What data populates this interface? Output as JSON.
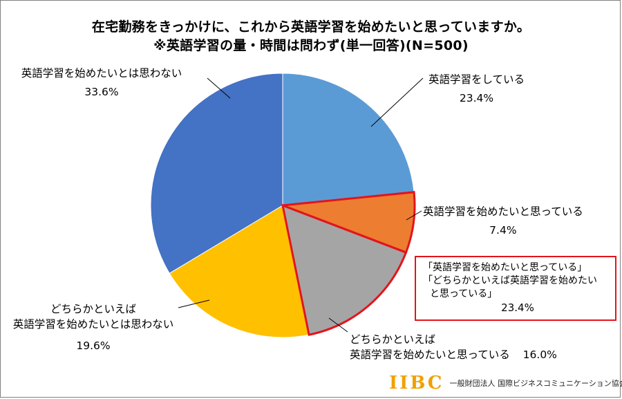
{
  "title": {
    "line1": "在宅勤務をきっかけに、これから英語学習を始めたいと思っていますか。",
    "line2": "※英語学習の量・時間は問わず(単一回答)(N=500)"
  },
  "chart_data": {
    "type": "pie",
    "n": 500,
    "slices": [
      {
        "label": "英語学習をしている",
        "value": 23.4,
        "value_label": "23.4%",
        "color": "#5b9bd5"
      },
      {
        "label": "英語学習を始めたいと思っている",
        "value": 7.4,
        "value_label": "7.4%",
        "color": "#ed7d31",
        "highlight": true
      },
      {
        "label": "どちらかといえば英語学習を始めたいと思っている",
        "value": 16.0,
        "value_label": "16.0%",
        "color": "#a5a5a5",
        "highlight": true
      },
      {
        "label": "どちらかといえば英語学習を始めたいとは思わない",
        "value": 19.6,
        "value_label": "19.6%",
        "color": "#ffc000"
      },
      {
        "label": "英語学習を始めたいとは思わない",
        "value": 33.6,
        "value_label": "33.6%",
        "color": "#4472c4"
      }
    ],
    "highlight_color": "#e3141b"
  },
  "labels": {
    "s0": {
      "name": "英語学習をしている",
      "pct": "23.4%"
    },
    "s1": {
      "name": "英語学習を始めたいと思っている",
      "pct": "7.4%"
    },
    "s2": {
      "line1": "どちらかといえば",
      "line2": "英語学習を始めたいと思っている",
      "pct": "16.0%"
    },
    "s3": {
      "line1": "どちらかといえば",
      "line2": "英語学習を始めたいとは思わない",
      "pct": "19.6%"
    },
    "s4": {
      "name": "英語学習を始めたいとは思わない",
      "pct": "33.6%"
    }
  },
  "callout": {
    "line1": "「英語学習を始めたいと思っている」",
    "line2": "「どちらかといえば英語学習を始めたい",
    "line3": "と思っている」",
    "pct": "23.4%"
  },
  "footer": {
    "logo": "IIBC",
    "org": "一般財団法人 国際ビジネスコミュニケーション協会"
  }
}
